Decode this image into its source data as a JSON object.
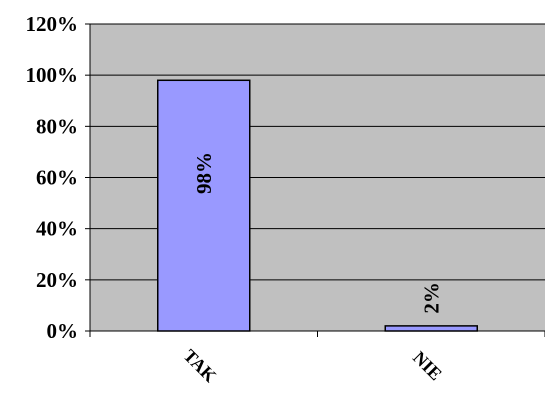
{
  "chart_data": {
    "type": "bar",
    "categories": [
      "TAK",
      "NIE"
    ],
    "values": [
      98,
      2
    ],
    "data_labels": [
      "98%",
      "2%"
    ],
    "y_tick_labels": [
      "0%",
      "20%",
      "40%",
      "60%",
      "80%",
      "100%",
      "120%"
    ],
    "y_ticks": [
      0,
      20,
      40,
      60,
      80,
      100,
      120
    ],
    "ylim": [
      0,
      120
    ],
    "title": "",
    "xlabel": "",
    "ylabel": "",
    "grid": true,
    "legend": "none",
    "colors": {
      "bar_fill": "#9999ff",
      "bar_stroke": "#000000",
      "plot_background": "#c0c0c0",
      "gridline": "#000000"
    }
  }
}
